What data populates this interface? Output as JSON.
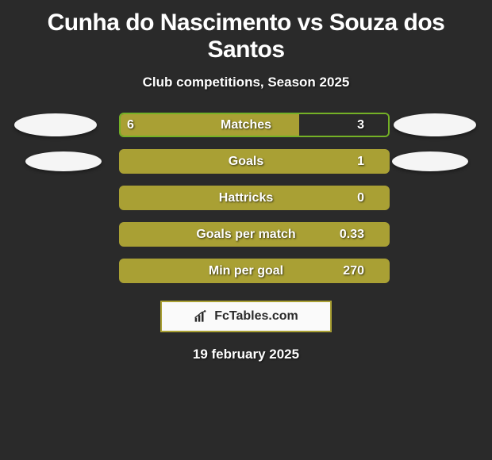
{
  "title": "Cunha do Nascimento vs Souza dos Santos",
  "subtitle": "Club competitions, Season 2025",
  "date": "19 february 2025",
  "source": "FcTables.com",
  "colors": {
    "background": "#2a2a2a",
    "bar_fill": "#a9a034",
    "bar_alt": "#2a2a2a",
    "border1": "#74b126",
    "border2": "#a9a034",
    "ellipse": "#f5f5f5",
    "text": "#ffffff"
  },
  "stats": [
    {
      "label": "Matches",
      "left_value": "6",
      "right_value": "3",
      "left_fill_pct": 66.7,
      "border_color": "#74b126",
      "bar_bg": "#a9a034",
      "bar_alt": "#2a2a2a",
      "show_ellipse_left": true,
      "show_ellipse_right": true,
      "ellipse_small": false
    },
    {
      "label": "Goals",
      "left_value": "",
      "right_value": "1",
      "left_fill_pct": 100,
      "border_color": "#a9a034",
      "bar_bg": "#a9a034",
      "bar_alt": "#2a2a2a",
      "show_ellipse_left": true,
      "show_ellipse_right": true,
      "ellipse_small": true
    },
    {
      "label": "Hattricks",
      "left_value": "",
      "right_value": "0",
      "left_fill_pct": 0,
      "border_color": "#a9a034",
      "bar_bg": "#a9a034",
      "bar_alt": "#2a2a2a",
      "show_ellipse_left": false,
      "show_ellipse_right": false,
      "ellipse_small": false
    },
    {
      "label": "Goals per match",
      "left_value": "",
      "right_value": "0.33",
      "left_fill_pct": 0,
      "border_color": "#a9a034",
      "bar_bg": "#a9a034",
      "bar_alt": "#2a2a2a",
      "show_ellipse_left": false,
      "show_ellipse_right": false,
      "ellipse_small": false
    },
    {
      "label": "Min per goal",
      "left_value": "",
      "right_value": "270",
      "left_fill_pct": 0,
      "border_color": "#a9a034",
      "bar_bg": "#a9a034",
      "bar_alt": "#2a2a2a",
      "show_ellipse_left": false,
      "show_ellipse_right": false,
      "ellipse_small": false
    }
  ]
}
